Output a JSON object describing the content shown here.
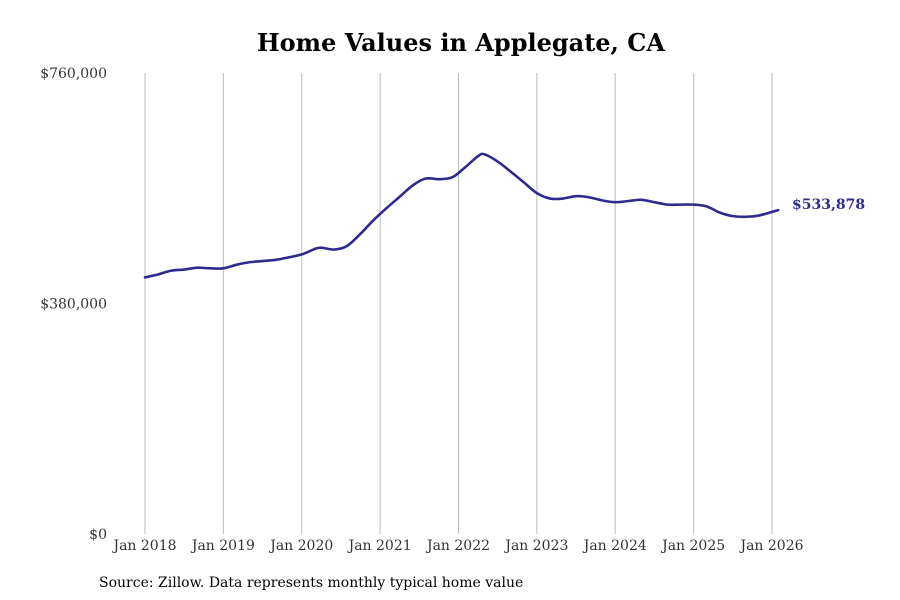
{
  "chart_data": {
    "type": "line",
    "title": "Home Values in Applegate, CA",
    "xlabel": "",
    "ylabel": "",
    "ylim": [
      0,
      760000
    ],
    "y_ticks": [
      {
        "value": 0,
        "label": "$0"
      },
      {
        "value": 380000,
        "label": "$380,000"
      },
      {
        "value": 760000,
        "label": "$760,000"
      }
    ],
    "x_ticks": [
      {
        "value": 2018.0,
        "label": "Jan 2018"
      },
      {
        "value": 2019.0,
        "label": "Jan 2019"
      },
      {
        "value": 2020.0,
        "label": "Jan 2020"
      },
      {
        "value": 2021.0,
        "label": "Jan 2021"
      },
      {
        "value": 2022.0,
        "label": "Jan 2022"
      },
      {
        "value": 2023.0,
        "label": "Jan 2023"
      },
      {
        "value": 2024.0,
        "label": "Jan 2024"
      },
      {
        "value": 2025.0,
        "label": "Jan 2025"
      },
      {
        "value": 2026.0,
        "label": "Jan 2026"
      }
    ],
    "xlim": [
      2018.0,
      2026.0
    ],
    "grid": "vertical",
    "series": [
      {
        "name": "Typical home value",
        "color": "#2e2a8f",
        "x": [
          2018.0,
          2018.17,
          2018.33,
          2018.5,
          2018.67,
          2018.83,
          2019.0,
          2019.17,
          2019.33,
          2019.5,
          2019.67,
          2019.83,
          2020.0,
          2020.17,
          2020.25,
          2020.42,
          2020.58,
          2020.75,
          2020.92,
          2021.08,
          2021.25,
          2021.42,
          2021.58,
          2021.75,
          2021.92,
          2022.08,
          2022.25,
          2022.33,
          2022.5,
          2022.67,
          2022.83,
          2023.0,
          2023.17,
          2023.33,
          2023.5,
          2023.67,
          2023.83,
          2024.0,
          2024.17,
          2024.33,
          2024.5,
          2024.67,
          2024.83,
          2025.0,
          2025.17,
          2025.33,
          2025.5,
          2025.67,
          2025.83,
          2026.0,
          2026.08
        ],
        "values": [
          423000,
          428000,
          434000,
          436000,
          439000,
          438000,
          438000,
          444000,
          448000,
          450000,
          452000,
          456000,
          461000,
          470000,
          472000,
          469000,
          475000,
          495000,
          518000,
          537000,
          556000,
          575000,
          586000,
          585000,
          588000,
          604000,
          623000,
          626000,
          614000,
          597000,
          580000,
          562000,
          553000,
          553000,
          557000,
          555000,
          550000,
          547000,
          549000,
          551000,
          547000,
          543000,
          543000,
          543000,
          540000,
          530000,
          524000,
          523000,
          525000,
          531000,
          533878
        ]
      }
    ],
    "end_label": "$533,878",
    "source": "Source: Zillow. Data represents monthly typical home value"
  }
}
